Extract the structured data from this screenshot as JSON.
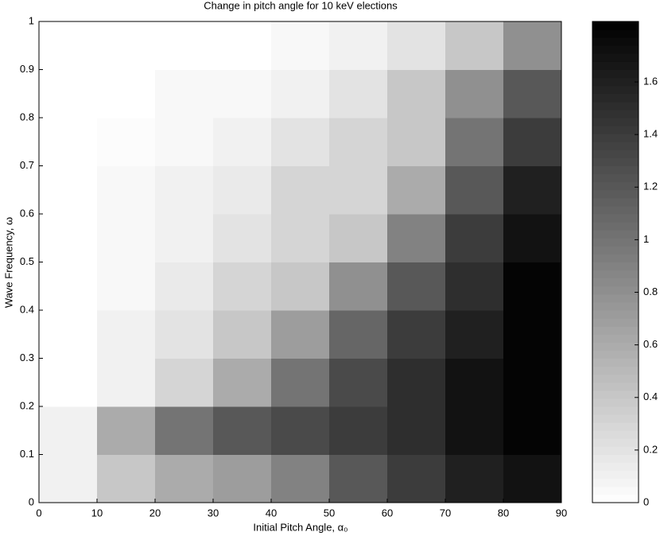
{
  "chart_data": {
    "type": "heatmap",
    "title": "Change in pitch angle for 10 keV elections",
    "x_label": "Initial Pitch Angle, α₀",
    "y_label": "Wave Frequency, ω",
    "xbins": [
      0,
      10,
      20,
      30,
      40,
      50,
      60,
      70,
      80,
      90
    ],
    "ybins": [
      0,
      0.1,
      0.2,
      0.3,
      0.4,
      0.5,
      0.6,
      0.7,
      0.8,
      0.9,
      1
    ],
    "z": [
      [
        0.1,
        0.4,
        0.6,
        0.7,
        0.9,
        1.2,
        1.4,
        1.6,
        1.7
      ],
      [
        0.1,
        0.6,
        1.0,
        1.2,
        1.3,
        1.4,
        1.5,
        1.7,
        1.8
      ],
      [
        0,
        0.1,
        0.3,
        0.6,
        1.0,
        1.3,
        1.5,
        1.7,
        1.8
      ],
      [
        0,
        0.1,
        0.2,
        0.4,
        0.7,
        1.1,
        1.4,
        1.6,
        1.8
      ],
      [
        0,
        0.05,
        0.15,
        0.3,
        0.4,
        0.8,
        1.2,
        1.5,
        1.8
      ],
      [
        0,
        0.05,
        0.1,
        0.2,
        0.3,
        0.4,
        0.9,
        1.4,
        1.7
      ],
      [
        0,
        0.05,
        0.1,
        0.15,
        0.3,
        0.3,
        0.6,
        1.2,
        1.6
      ],
      [
        0,
        0.02,
        0.05,
        0.1,
        0.2,
        0.3,
        0.4,
        1.0,
        1.4
      ],
      [
        0,
        0,
        0.05,
        0.05,
        0.1,
        0.2,
        0.4,
        0.8,
        1.2
      ],
      [
        0,
        0,
        0,
        0,
        0.05,
        0.1,
        0.2,
        0.4,
        0.8
      ]
    ],
    "colormap": [
      "#ffffff",
      "#000000"
    ],
    "xlim": [
      0,
      90
    ],
    "xticks": [
      0,
      10,
      20,
      30,
      40,
      50,
      60,
      70,
      80,
      90
    ],
    "ylim": [
      0,
      1
    ],
    "yticks": [
      0,
      0.1,
      0.2,
      0.3,
      0.4,
      0.5,
      0.6,
      0.7,
      0.8,
      0.9,
      1
    ],
    "clim": [
      0,
      1.83
    ],
    "cticks": [
      0,
      0.2,
      0.4,
      0.6,
      0.8,
      1,
      1.2,
      1.4,
      1.6
    ]
  }
}
